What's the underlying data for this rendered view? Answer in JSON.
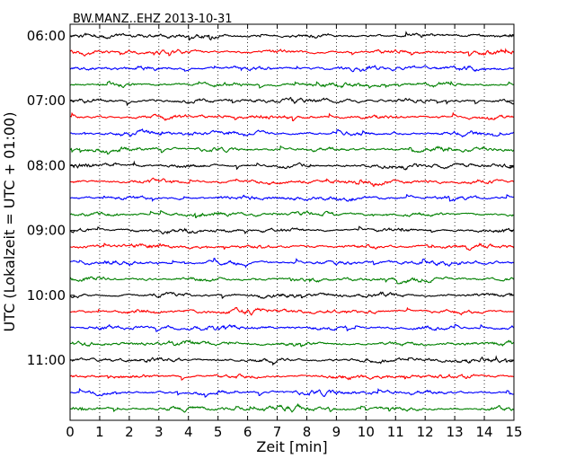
{
  "chart_data": {
    "type": "line",
    "title": "BW.MANZ..EHZ 2013-10-31",
    "xlabel": "Zeit  [min]",
    "ylabel": "UTC (Lokalzeit = UTC + 01:00)",
    "xlim": [
      0,
      15
    ],
    "x_ticks": [
      "0",
      "1",
      "2",
      "3",
      "4",
      "5",
      "6",
      "7",
      "8",
      "9",
      "10",
      "11",
      "12",
      "13",
      "14",
      "15"
    ],
    "y_tick_labels": [
      "06:00",
      "07:00",
      "08:00",
      "09:00",
      "10:00",
      "11:00"
    ],
    "grid": "vertical-dotted",
    "rows": [
      {
        "start": "06:00",
        "color": "#000000"
      },
      {
        "start": "06:15",
        "color": "#ff0000"
      },
      {
        "start": "06:30",
        "color": "#0000ff"
      },
      {
        "start": "06:45",
        "color": "#008000"
      },
      {
        "start": "07:00",
        "color": "#000000"
      },
      {
        "start": "07:15",
        "color": "#ff0000"
      },
      {
        "start": "07:30",
        "color": "#0000ff"
      },
      {
        "start": "07:45",
        "color": "#008000"
      },
      {
        "start": "08:00",
        "color": "#000000"
      },
      {
        "start": "08:15",
        "color": "#ff0000"
      },
      {
        "start": "08:30",
        "color": "#0000ff"
      },
      {
        "start": "08:45",
        "color": "#008000"
      },
      {
        "start": "09:00",
        "color": "#000000"
      },
      {
        "start": "09:15",
        "color": "#ff0000"
      },
      {
        "start": "09:30",
        "color": "#0000ff"
      },
      {
        "start": "09:45",
        "color": "#008000"
      },
      {
        "start": "10:00",
        "color": "#000000"
      },
      {
        "start": "10:15",
        "color": "#ff0000"
      },
      {
        "start": "10:30",
        "color": "#0000ff"
      },
      {
        "start": "10:45",
        "color": "#008000"
      },
      {
        "start": "11:00",
        "color": "#000000"
      },
      {
        "start": "11:15",
        "color": "#ff0000"
      },
      {
        "start": "11:30",
        "color": "#0000ff"
      },
      {
        "start": "11:45",
        "color": "#008000"
      }
    ]
  }
}
